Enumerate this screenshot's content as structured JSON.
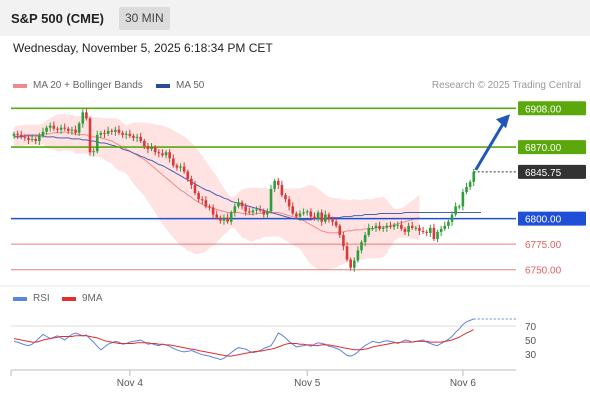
{
  "header": {
    "title": "S&P 500 (CME)",
    "timeframe": "30 MIN"
  },
  "datetime": "Wednesday, November 5, 2025 6:18:34 PM CET",
  "legend": {
    "ma20_label": "MA 20 + Bollinger Bands",
    "ma50_label": "MA 50",
    "credit": "Research © 2025 Trading Central"
  },
  "rsi_legend": {
    "rsi_label": "RSI",
    "ma_label": "9MA"
  },
  "colors": {
    "resistance": "#5aa80c",
    "pivot": "#1f4fd6",
    "support": "#e06060",
    "bull": "#2f9e3a",
    "bear": "#d83a3a",
    "bollinger": "#ffdddd",
    "ma20": "#f08a8a",
    "ma50": "#4a5fb0",
    "current": "#333333",
    "rsi": "#5b84e0",
    "rsi_ma": "#e03030",
    "arrow": "#2057b8"
  },
  "chart_data": [
    {
      "type": "candlestick",
      "title": "S&P 500 (CME) 30 MIN",
      "ylim": [
        6738,
        6920
      ],
      "levels": [
        {
          "label": "6908.00",
          "value": 6908.0,
          "kind": "resistance"
        },
        {
          "label": "6870.00",
          "value": 6870.0,
          "kind": "resistance"
        },
        {
          "label": "6845.75",
          "value": 6845.75,
          "kind": "current"
        },
        {
          "label": "6800.00",
          "value": 6800.0,
          "kind": "pivot"
        },
        {
          "label": "6775.00",
          "value": 6775.0,
          "kind": "support"
        },
        {
          "label": "6750.00",
          "value": 6750.0,
          "kind": "support"
        }
      ],
      "x_ticks": [
        {
          "label": "Nov 4",
          "index": 32
        },
        {
          "label": "Nov 5",
          "index": 81
        },
        {
          "label": "Nov 6",
          "index": 124
        }
      ],
      "close": [
        6883,
        6882,
        6880,
        6879,
        6877,
        6878,
        6876,
        6881,
        6885,
        6889,
        6891,
        6888,
        6887,
        6889,
        6888,
        6886,
        6887,
        6884,
        6893,
        6904,
        6898,
        6865,
        6866,
        6882,
        6884,
        6883,
        6886,
        6885,
        6887,
        6884,
        6882,
        6883,
        6881,
        6879,
        6880,
        6876,
        6871,
        6868,
        6870,
        6865,
        6864,
        6862,
        6865,
        6859,
        6852,
        6850,
        6851,
        6846,
        6839,
        6833,
        6825,
        6819,
        6818,
        6812,
        6811,
        6804,
        6801,
        6798,
        6801,
        6797,
        6806,
        6812,
        6816,
        6812,
        6807,
        6806,
        6808,
        6809,
        6808,
        6804,
        6807,
        6829,
        6837,
        6833,
        6823,
        6819,
        6812,
        6805,
        6802,
        6805,
        6806,
        6807,
        6802,
        6800,
        6806,
        6797,
        6804,
        6799,
        6797,
        6793,
        6784,
        6773,
        6760,
        6752,
        6759,
        6769,
        6777,
        6784,
        6791,
        6791,
        6793,
        6790,
        6791,
        6793,
        6792,
        6794,
        6794,
        6790,
        6787,
        6793,
        6791,
        6791,
        6788,
        6787,
        6786,
        6791,
        6780,
        6787,
        6790,
        6793,
        6797,
        6804,
        6812,
        6812,
        6826,
        6831,
        6836,
        6845.75
      ],
      "ma20": [
        6880,
        6881,
        6881,
        6882,
        6882,
        6882,
        6882,
        6882,
        6883,
        6883,
        6883,
        6884,
        6884,
        6884,
        6885,
        6884,
        6884,
        6882,
        6882,
        6882,
        6882,
        6880,
        6880,
        6880,
        6879,
        6878,
        6877,
        6876,
        6874,
        6872,
        6870,
        6868,
        6866,
        6864,
        6862,
        6860,
        6858,
        6855,
        6852,
        6849,
        6846,
        6843,
        6840,
        6837,
        6834,
        6831,
        6828,
        6826,
        6823,
        6821,
        6818,
        6816,
        6814,
        6812,
        6811,
        6810,
        6809,
        6808,
        6807,
        6806,
        6806,
        6806,
        6806,
        6805,
        6805,
        6804,
        6804,
        6805,
        6805,
        6806,
        6806,
        6806,
        6806,
        6806,
        6805,
        6804,
        6803,
        6802,
        6801,
        6800,
        6798,
        6796,
        6794,
        6792,
        6790,
        6788,
        6787,
        6786,
        6786,
        6786,
        6787,
        6787,
        6788,
        6788,
        6789,
        6789,
        6789,
        6790,
        6790,
        6790,
        6791,
        6791,
        6792,
        6792,
        6793,
        6794,
        6795,
        6796,
        6797,
        6798,
        6799,
        6800,
        6801
      ],
      "ma50": [
        6880,
        6880,
        6880,
        6881,
        6881,
        6881,
        6881,
        6881,
        6881,
        6880,
        6880,
        6880,
        6879,
        6879,
        6879,
        6879,
        6878,
        6878,
        6878,
        6877,
        6877,
        6876,
        6876,
        6875,
        6874,
        6874,
        6873,
        6872,
        6871,
        6870,
        6868,
        6867,
        6866,
        6864,
        6863,
        6861,
        6860,
        6858,
        6857,
        6855,
        6853,
        6852,
        6850,
        6848,
        6846,
        6844,
        6842,
        6840,
        6838,
        6836,
        6834,
        6832,
        6830,
        6828,
        6827,
        6825,
        6823,
        6822,
        6820,
        6819,
        6817,
        6816,
        6815,
        6814,
        6813,
        6812,
        6811,
        6810,
        6809,
        6808,
        6807,
        6806,
        6805,
        6804,
        6803,
        6802,
        6801,
        6800,
        6800,
        6799,
        6799,
        6799,
        6799,
        6800,
        6800,
        6800,
        6800,
        6801,
        6801,
        6801,
        6801,
        6802,
        6802,
        6802,
        6803,
        6803,
        6803,
        6804,
        6804,
        6804,
        6804,
        6805,
        6805,
        6805,
        6805,
        6805,
        6805,
        6805,
        6806,
        6806,
        6806,
        6806,
        6806,
        6806,
        6806,
        6806,
        6806,
        6806,
        6806,
        6806,
        6806,
        6806,
        6806,
        6806,
        6806,
        6806,
        6806,
        6806,
        6806,
        6806
      ]
    },
    {
      "type": "line",
      "title": "RSI",
      "ylim": [
        10,
        90
      ],
      "y_ticks": [
        70,
        50,
        30
      ],
      "series": [
        {
          "name": "RSI",
          "values": [
            48,
            47,
            45,
            43,
            42,
            44,
            48,
            53,
            58,
            55,
            52,
            54,
            56,
            53,
            50,
            54,
            58,
            60,
            58,
            56,
            57,
            52,
            47,
            41,
            36,
            40,
            44,
            46,
            48,
            47,
            44,
            45,
            47,
            48,
            49,
            50,
            47,
            44,
            45,
            43,
            42,
            44,
            43,
            41,
            38,
            36,
            34,
            33,
            34,
            35,
            33,
            31,
            29,
            28,
            27,
            25,
            24,
            22,
            24,
            28,
            32,
            36,
            39,
            38,
            37,
            34,
            32,
            33,
            35,
            38,
            40,
            42,
            50,
            60,
            57,
            53,
            48,
            44,
            40,
            41,
            42,
            43,
            41,
            44,
            46,
            45,
            44,
            41,
            40,
            38,
            36,
            32,
            28,
            27,
            29,
            33,
            38,
            42,
            45,
            48,
            47,
            46,
            48,
            49,
            48,
            47,
            45,
            47,
            50,
            49,
            47,
            48,
            49,
            50,
            47,
            45,
            43,
            42,
            45,
            48,
            51,
            55,
            61,
            66,
            72,
            76,
            78,
            80
          ]
        },
        {
          "name": "9MA",
          "values": [
            52,
            51,
            50,
            49,
            48,
            47,
            47,
            48,
            50,
            51,
            52,
            53,
            54,
            55,
            55,
            55,
            55,
            56,
            56,
            56,
            56,
            55,
            54,
            53,
            51,
            49,
            48,
            47,
            46,
            45,
            45,
            45,
            45,
            45,
            46,
            46,
            46,
            46,
            45,
            45,
            44,
            44,
            43,
            43,
            42,
            41,
            40,
            39,
            38,
            37,
            36,
            35,
            34,
            33,
            32,
            31,
            30,
            29,
            28,
            27,
            27,
            28,
            29,
            30,
            31,
            32,
            33,
            34,
            34,
            35,
            36,
            37,
            38,
            40,
            42,
            44,
            45,
            45,
            45,
            44,
            44,
            43,
            43,
            42,
            42,
            43,
            43,
            43,
            42,
            41,
            40,
            39,
            38,
            37,
            36,
            36,
            36,
            37,
            38,
            40,
            41,
            42,
            43,
            44,
            45,
            46,
            46,
            47,
            47,
            47,
            47,
            48,
            48,
            48,
            48,
            47,
            47,
            47,
            47,
            48,
            49,
            50,
            52,
            54,
            57,
            60,
            62,
            65
          ]
        }
      ]
    }
  ]
}
